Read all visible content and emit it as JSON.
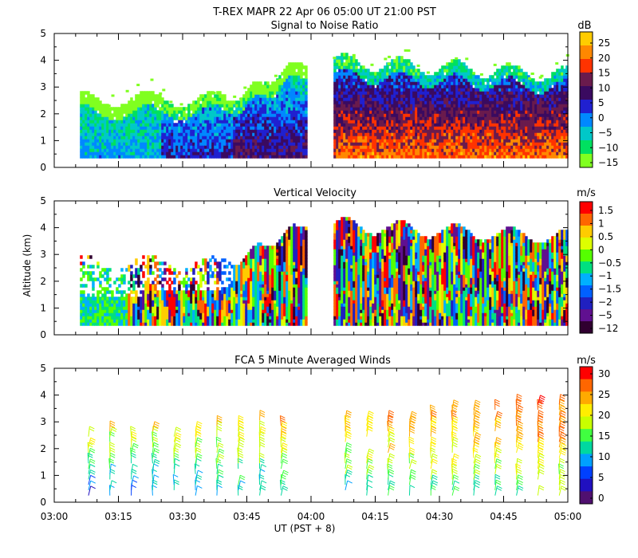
{
  "header": {
    "line1": "T-REX   MAPR 22 Apr 06   05:00 UT   21:00   PST"
  },
  "x_axis": {
    "label": "UT  (PST + 8)",
    "ticks": [
      "03:00",
      "03:15",
      "03:30",
      "03:45",
      "04:00",
      "04:15",
      "04:30",
      "04:45",
      "05:00"
    ]
  },
  "y_axis": {
    "label": "Altitude (km)",
    "ticks": [
      "0",
      "1",
      "2",
      "3",
      "4",
      "5"
    ]
  },
  "chart_data": [
    {
      "type": "heatmap",
      "title": "Signal to Noise Ratio",
      "xlabel": "UT  (PST + 8)",
      "ylabel": "Altitude (km)",
      "x_range_hours": [
        3.0,
        5.0
      ],
      "ylim": [
        0,
        5
      ],
      "data_gap_hours": [
        3.98,
        4.08
      ],
      "data_start_hours": 3.1,
      "colorbar": {
        "unit": "dB",
        "tick_labels": [
          "25",
          "20",
          "15",
          "10",
          "5",
          "0",
          "−5",
          "−10",
          "−15"
        ],
        "colors": [
          "#FFCC00",
          "#FF8800",
          "#FF3300",
          "#6A1B4D",
          "#3A0A60",
          "#2020D0",
          "#0088FF",
          "#00C8C8",
          "#00E060",
          "#80FF20"
        ]
      }
    },
    {
      "type": "heatmap",
      "title": "Vertical Velocity",
      "xlabel": "UT  (PST + 8)",
      "ylabel": "Altitude (km)",
      "x_range_hours": [
        3.0,
        5.0
      ],
      "ylim": [
        0,
        5
      ],
      "colorbar": {
        "unit": "m/s",
        "tick_labels": [
          "1.5",
          "1",
          "0.5",
          "0",
          "−0.5",
          "−1",
          "−1.5",
          "−2",
          "−5",
          "−12"
        ],
        "colors": [
          "#FF0000",
          "#FF6600",
          "#FFCC00",
          "#DDFF00",
          "#55FF00",
          "#00E080",
          "#00B0FF",
          "#0060FF",
          "#2020C0",
          "#601090",
          "#300030"
        ]
      }
    },
    {
      "type": "scatter",
      "title": "FCA 5 Minute Averaged Winds",
      "xlabel": "UT  (PST + 8)",
      "ylabel": "Altitude (km)",
      "x_range_hours": [
        3.0,
        5.0
      ],
      "ylim": [
        0,
        5
      ],
      "interval_minutes": 5,
      "colorbar": {
        "unit": "m/s",
        "tick_labels": [
          "30",
          "25",
          "20",
          "15",
          "10",
          "5",
          "0"
        ],
        "colors": [
          "#FF0000",
          "#FF6600",
          "#FFAA00",
          "#FFEE00",
          "#C8FF00",
          "#40FF40",
          "#00D8A0",
          "#00A0FF",
          "#0040FF",
          "#2010C0",
          "#501070"
        ]
      }
    }
  ]
}
